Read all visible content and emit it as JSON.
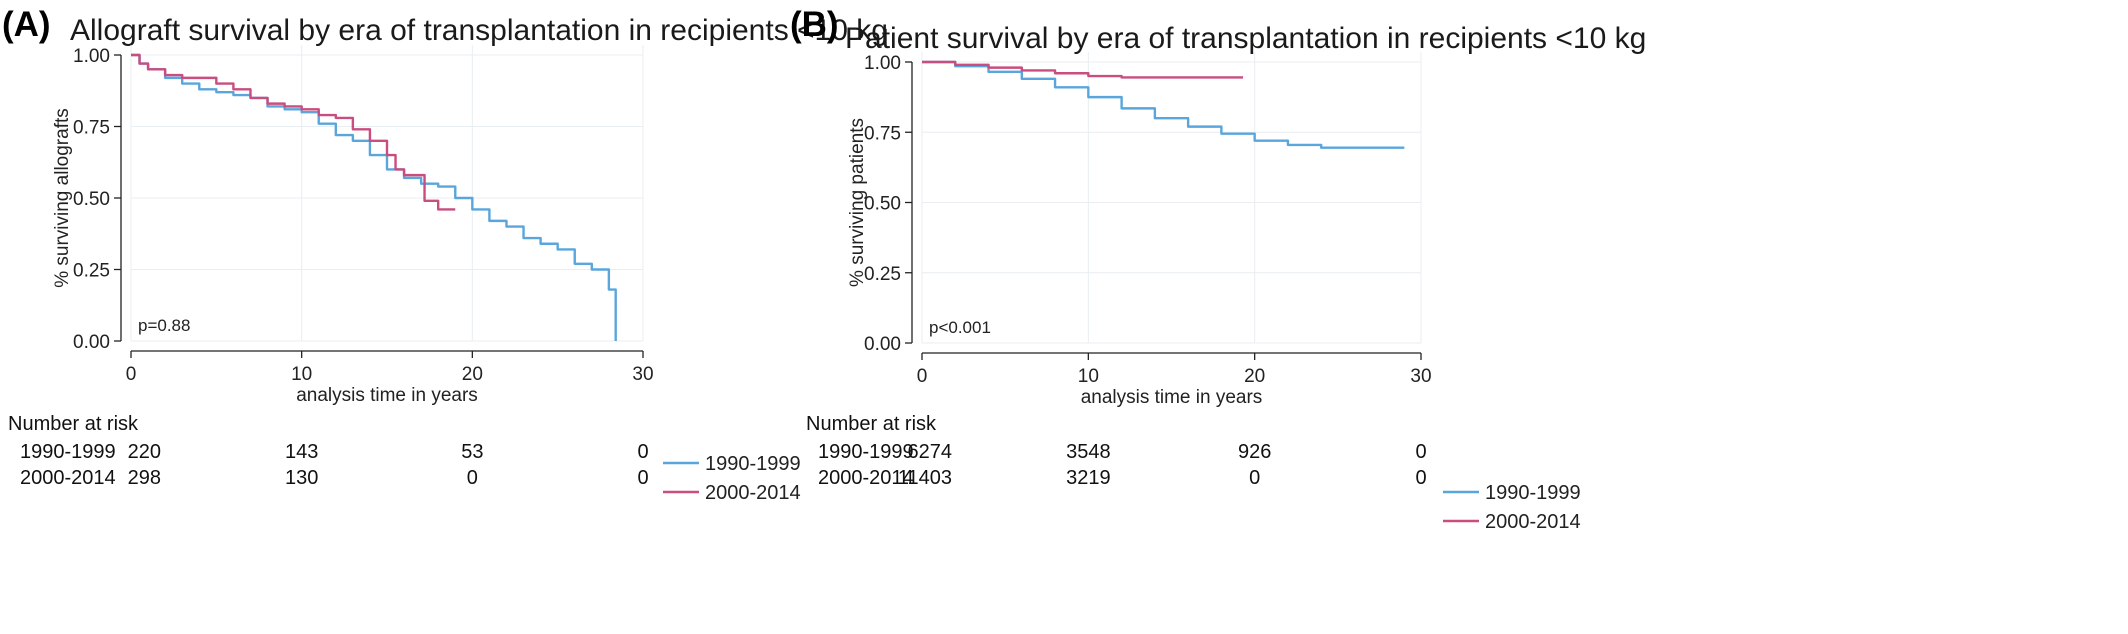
{
  "chart_data": [
    {
      "type": "line",
      "panel_label": "(A)",
      "title": "Allograft survival by era of transplantation in recipients <10 kg",
      "xlabel": "analysis time in years",
      "ylabel": "% surviving allografts",
      "xlim": [
        0,
        30
      ],
      "ylim": [
        0,
        1
      ],
      "x_ticks": [
        0,
        10,
        20,
        30
      ],
      "y_ticks": [
        "0.00",
        "0.25",
        "0.50",
        "0.75",
        "1.00"
      ],
      "grid": true,
      "legend_position": "right",
      "annotation": "p=0.88",
      "series": [
        {
          "name": "1990-1999",
          "color": "#5aa6dc",
          "x": [
            0,
            0.5,
            1,
            2,
            3,
            4,
            5,
            6,
            7,
            8,
            9,
            10,
            11,
            12,
            13,
            14,
            15,
            16,
            17,
            18,
            19,
            20,
            21,
            22,
            23,
            24,
            25,
            26,
            27,
            28,
            28.4,
            28.4
          ],
          "y": [
            1.0,
            0.97,
            0.95,
            0.92,
            0.9,
            0.88,
            0.87,
            0.86,
            0.85,
            0.82,
            0.81,
            0.8,
            0.76,
            0.72,
            0.7,
            0.65,
            0.6,
            0.57,
            0.55,
            0.54,
            0.5,
            0.46,
            0.42,
            0.4,
            0.36,
            0.34,
            0.32,
            0.27,
            0.25,
            0.18,
            0.18,
            0.0
          ]
        },
        {
          "name": "2000-2014",
          "color": "#c94d7f",
          "x": [
            0,
            0.5,
            1,
            2,
            3,
            4,
            5,
            6,
            7,
            8,
            9,
            10,
            11,
            12,
            13,
            14,
            15,
            15.5,
            16,
            17,
            17.2,
            18,
            19
          ],
          "y": [
            1.0,
            0.97,
            0.95,
            0.93,
            0.92,
            0.92,
            0.9,
            0.88,
            0.85,
            0.83,
            0.82,
            0.81,
            0.79,
            0.78,
            0.74,
            0.7,
            0.65,
            0.6,
            0.58,
            0.58,
            0.49,
            0.46,
            0.46
          ]
        }
      ],
      "number_at_risk": {
        "label": "Number at risk",
        "rows": [
          {
            "name": "1990-1999",
            "values": [
              "220",
              "143",
              "53",
              "0"
            ]
          },
          {
            "name": "2000-2014",
            "values": [
              "298",
              "130",
              "0",
              "0"
            ]
          }
        ]
      }
    },
    {
      "type": "line",
      "panel_label": "(B)",
      "title": "Patient survival by era of transplantation in recipients <10 kg",
      "xlabel": "analysis time in years",
      "ylabel": "% surviving patients",
      "xlim": [
        0,
        30
      ],
      "ylim": [
        0,
        1
      ],
      "x_ticks": [
        0,
        10,
        20,
        30
      ],
      "y_ticks": [
        "0.00",
        "0.25",
        "0.50",
        "0.75",
        "1.00"
      ],
      "grid": true,
      "legend_position": "right",
      "annotation": "p<0.001",
      "series": [
        {
          "name": "1990-1999",
          "color": "#5aa6dc",
          "x": [
            0,
            2,
            4,
            6,
            8,
            10,
            12,
            14,
            16,
            18,
            20,
            22,
            24,
            26,
            28,
            29
          ],
          "y": [
            1.0,
            0.985,
            0.965,
            0.94,
            0.91,
            0.875,
            0.835,
            0.8,
            0.77,
            0.745,
            0.72,
            0.705,
            0.695,
            0.695,
            0.695,
            0.695
          ]
        },
        {
          "name": "2000-2014",
          "color": "#c94d7f",
          "x": [
            0,
            2,
            4,
            6,
            8,
            10,
            12,
            14,
            16,
            18,
            19.3
          ],
          "y": [
            1.0,
            0.99,
            0.98,
            0.97,
            0.96,
            0.95,
            0.945,
            0.945,
            0.945,
            0.945,
            0.945
          ]
        }
      ],
      "number_at_risk": {
        "label": "Number at risk",
        "rows": [
          {
            "name": "1990-1999",
            "values": [
              "6274",
              "3548",
              "926",
              "0"
            ]
          },
          {
            "name": "2000-2014",
            "values": [
              "11403",
              "3219",
              "0",
              "0"
            ]
          }
        ]
      }
    }
  ]
}
